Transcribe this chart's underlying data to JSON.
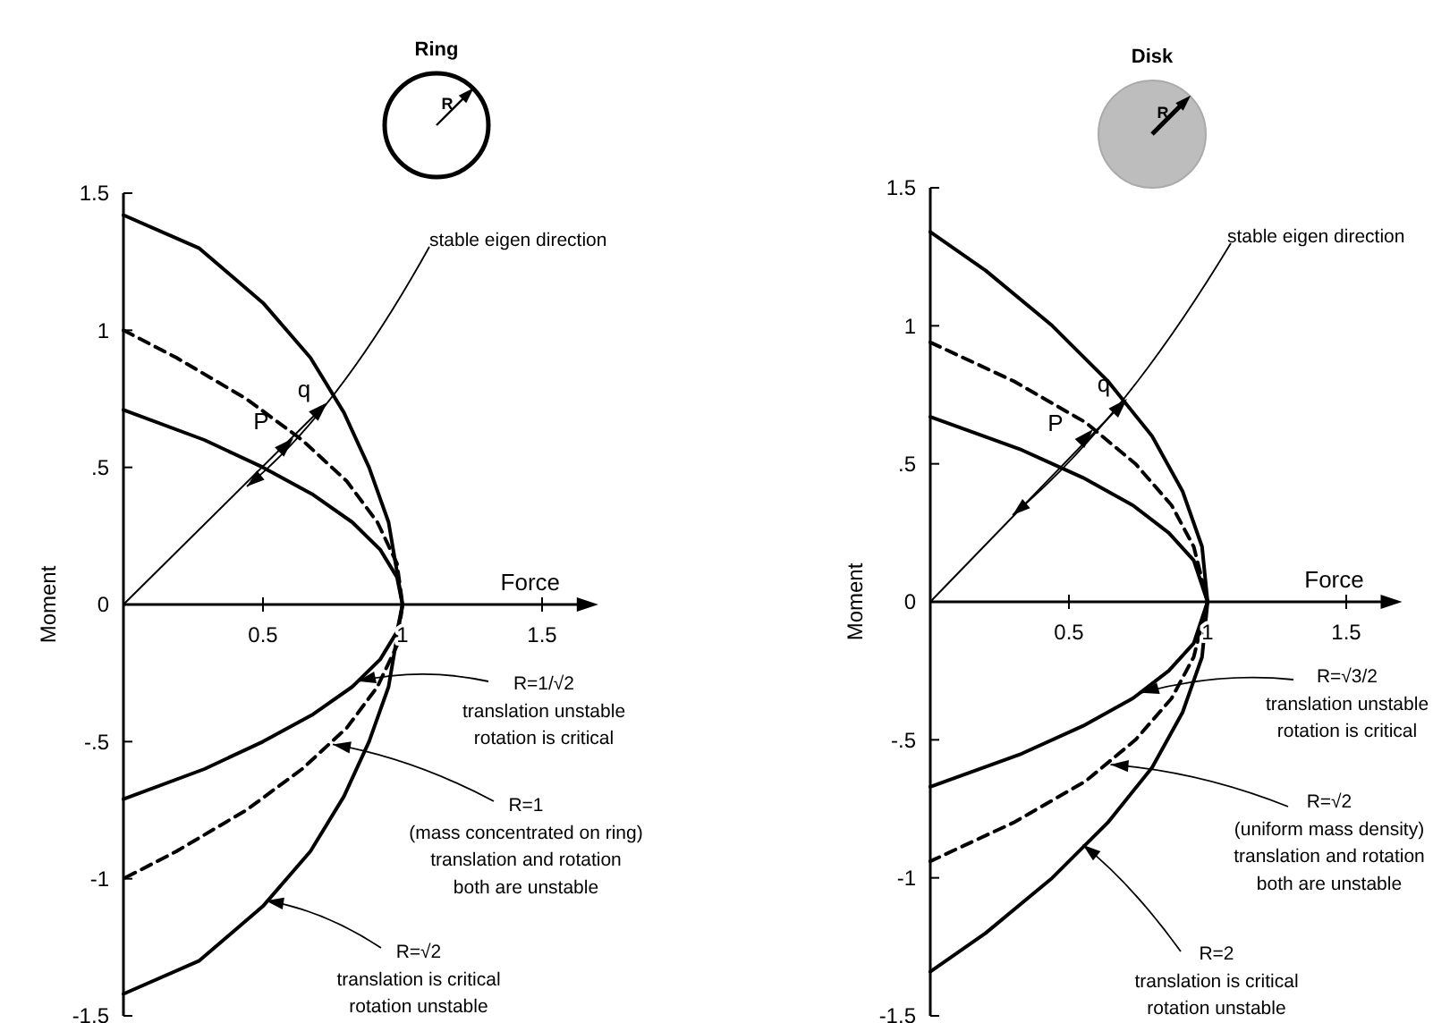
{
  "chart_data": [
    {
      "type": "line",
      "title": "Ring",
      "xlabel": "Force",
      "ylabel": "Moment",
      "xlim": [
        0,
        1.65
      ],
      "xticks": [
        0.5,
        1,
        1.5
      ],
      "ylim": [
        -1.5,
        1.5
      ],
      "yticks": [
        {
          "value": -1.5,
          "label": "-1.5"
        },
        {
          "value": -1,
          "label": "-1"
        },
        {
          "value": -0.5,
          "label": "-.5"
        },
        0,
        {
          "value": 0.5,
          "label": ".5"
        },
        1,
        1.5
      ],
      "series": [
        {
          "color": "#000000",
          "x": [
            0,
            0.27,
            0.5,
            0.67,
            0.79,
            0.88,
            0.95,
            1,
            0.95,
            0.88,
            0.79,
            0.67,
            0.5,
            0.27,
            0
          ],
          "values": [
            1.42,
            1.3,
            1.1,
            0.9,
            0.7,
            0.5,
            0.3,
            0,
            -0.3,
            -0.5,
            -0.7,
            -0.9,
            -1.1,
            -1.3,
            -1.42
          ]
        },
        {
          "color": "#000000",
          "line_style": "dashed",
          "x": [
            0,
            0.19,
            0.44,
            0.64,
            0.8,
            0.91,
            0.98,
            1,
            0.98,
            0.91,
            0.8,
            0.64,
            0.44,
            0.19,
            0
          ],
          "values": [
            1,
            0.9,
            0.75,
            0.6,
            0.45,
            0.3,
            0.15,
            0,
            -0.15,
            -0.3,
            -0.45,
            -0.6,
            -0.75,
            -0.9,
            -1
          ]
        },
        {
          "color": "#000000",
          "x": [
            0,
            0.29,
            0.5,
            0.68,
            0.82,
            0.92,
            0.98,
            1,
            0.98,
            0.92,
            0.82,
            0.68,
            0.5,
            0.29,
            0
          ],
          "values": [
            0.71,
            0.6,
            0.5,
            0.4,
            0.3,
            0.2,
            0.1,
            0,
            -0.1,
            -0.2,
            -0.3,
            -0.4,
            -0.5,
            -0.6,
            -0.71
          ]
        }
      ],
      "annotations": [
        "stable eigen direction",
        {
          "text": "R=1/√2\ntranslation unstable\nrotation is critical",
          "x": 0.84,
          "y": -0.28
        },
        {
          "text": "R=1\n\n(mass concentrated on ring)\ntranslation and rotation\nboth are unstable",
          "x": 0.75,
          "y": -0.51
        },
        {
          "text": "R=√2\n\ntranslation is critical\nrotation unstable",
          "x": 0.51,
          "y": -1.08
        },
        "P",
        "q",
        "R"
      ]
    },
    {
      "type": "line",
      "title": "Disk",
      "xlabel": "Force",
      "ylabel": "Moment",
      "xlim": [
        0,
        1.65
      ],
      "xticks": [
        0.5,
        1,
        1.5
      ],
      "ylim": [
        -1.5,
        1.5
      ],
      "yticks": [
        {
          "value": -1.5,
          "label": "-1.5"
        },
        {
          "value": -1,
          "label": "-1"
        },
        {
          "value": -0.5,
          "label": "-.5"
        },
        0,
        {
          "value": 0.5,
          "label": ".5"
        },
        1,
        1.5
      ],
      "series": [
        {
          "color": "#000000",
          "x": [
            0,
            0.2,
            0.44,
            0.64,
            0.8,
            0.91,
            0.98,
            1,
            0.98,
            0.91,
            0.8,
            0.64,
            0.44,
            0.2,
            0
          ],
          "values": [
            1.34,
            1.2,
            1,
            0.8,
            0.6,
            0.4,
            0.2,
            0,
            -0.2,
            -0.4,
            -0.6,
            -0.8,
            -1,
            -1.2,
            -1.34
          ]
        },
        {
          "color": "#000000",
          "line_style": "dashed",
          "x": [
            0,
            0.3,
            0.56,
            0.74,
            0.87,
            0.95,
            1,
            0.95,
            0.87,
            0.74,
            0.56,
            0.3,
            0
          ],
          "values": [
            0.94,
            0.8,
            0.65,
            0.5,
            0.35,
            0.2,
            0,
            -0.2,
            -0.35,
            -0.5,
            -0.65,
            -0.8,
            -0.94
          ]
        },
        {
          "color": "#000000",
          "x": [
            0,
            0.33,
            0.55,
            0.73,
            0.86,
            0.95,
            1,
            0.95,
            0.86,
            0.73,
            0.55,
            0.33,
            0
          ],
          "values": [
            0.67,
            0.55,
            0.45,
            0.35,
            0.25,
            0.15,
            0,
            -0.15,
            -0.25,
            -0.35,
            -0.45,
            -0.55,
            -0.67
          ]
        }
      ],
      "annotations": [
        "stable eigen direction",
        {
          "text": "R=√3/2\ntranslation unstable\nrotation is critical",
          "x": 0.76,
          "y": -0.33
        },
        {
          "text": "R=√2\n(uniform mass density)\ntranslation and rotation\nboth are unstable",
          "x": 0.65,
          "y": -0.59
        },
        {
          "text": "R=2\n\ntranslation is critical\nrotation unstable",
          "x": 0.55,
          "y": -0.88
        },
        "P",
        "q",
        "R"
      ]
    }
  ]
}
